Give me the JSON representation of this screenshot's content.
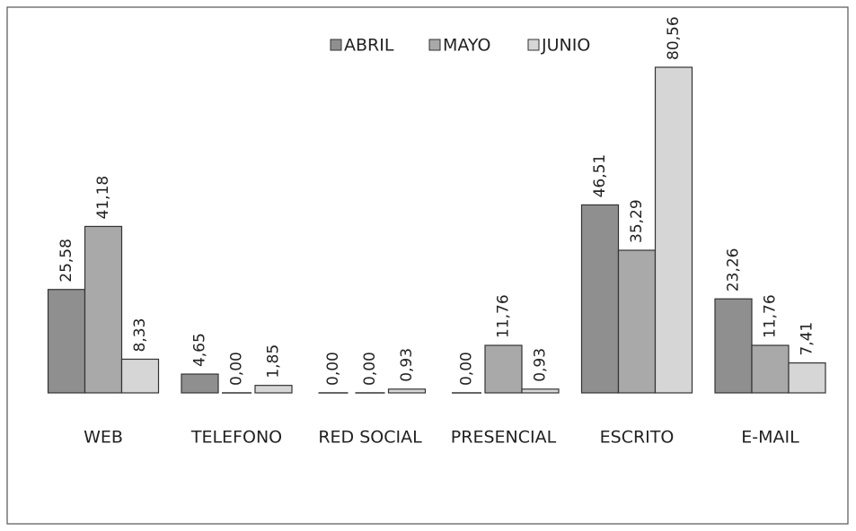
{
  "chart_data": {
    "type": "bar",
    "categories": [
      "WEB",
      "TELEFONO",
      "RED SOCIAL",
      "PRESENCIAL",
      "ESCRITO",
      "E-MAIL"
    ],
    "series": [
      {
        "name": "ABRIL",
        "color": "#8f8f8f",
        "values": [
          25.58,
          4.65,
          0.0,
          0.0,
          46.51,
          23.26
        ],
        "value_labels": [
          "25,58",
          "4,65",
          "0,00",
          "0,00",
          "46,51",
          "23,26"
        ]
      },
      {
        "name": "MAYO",
        "color": "#a9a9a9",
        "values": [
          41.18,
          0.0,
          0.0,
          11.76,
          35.29,
          11.76
        ],
        "value_labels": [
          "41,18",
          "0,00",
          "0,00",
          "11,76",
          "35,29",
          "11,76"
        ]
      },
      {
        "name": "JUNIO",
        "color": "#d6d6d6",
        "values": [
          8.33,
          1.85,
          0.93,
          0.93,
          80.56,
          7.41
        ],
        "value_labels": [
          "8,33",
          "1,85",
          "0,93",
          "0,93",
          "80,56",
          "7,41"
        ]
      }
    ],
    "legend": "top"
  }
}
